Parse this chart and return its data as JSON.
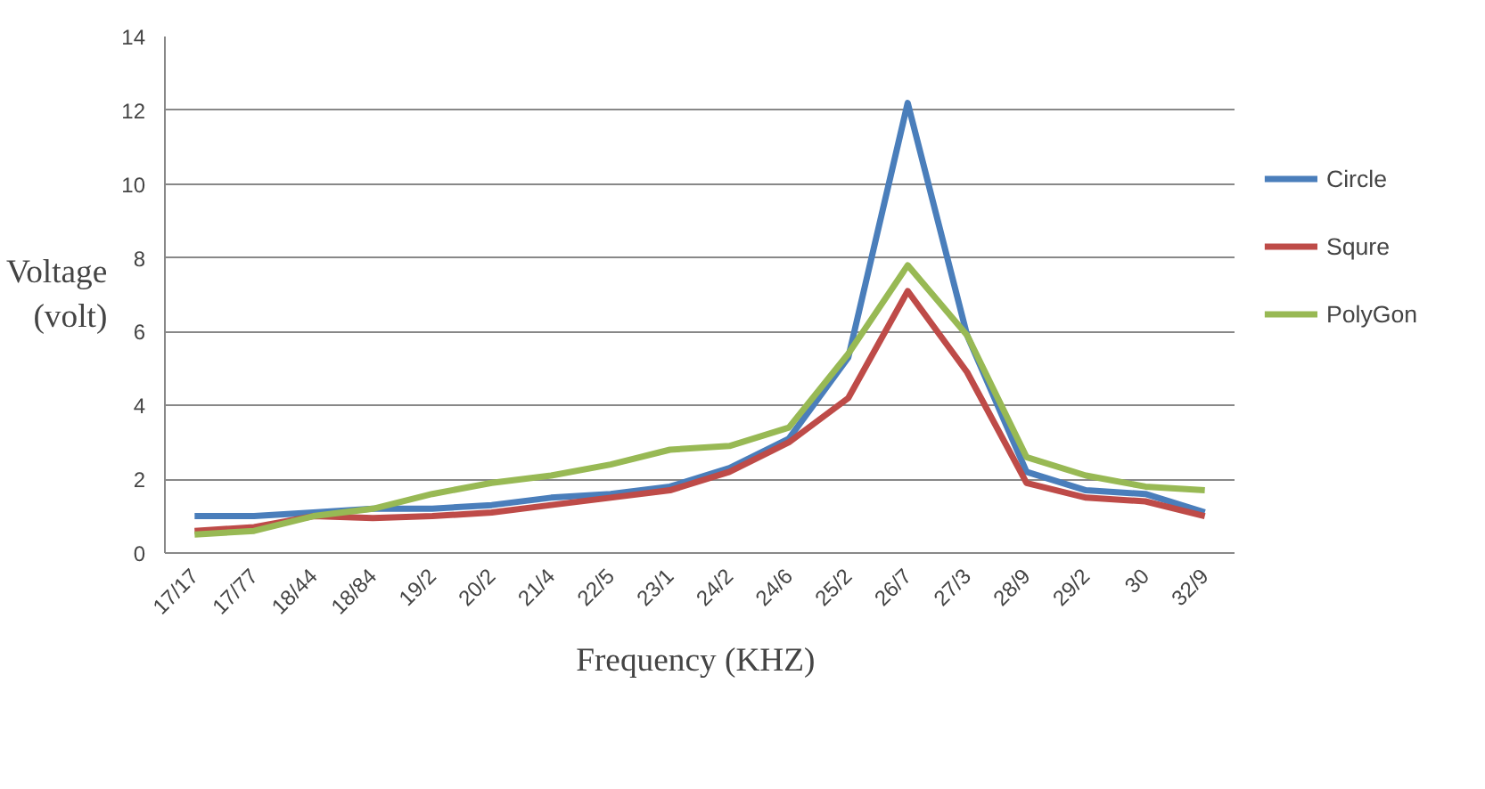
{
  "chart_data": {
    "type": "line",
    "xlabel": "Frequency  (KHZ)",
    "ylabel": "Voltage\n(volt)",
    "categories": [
      "17/17",
      "17/77",
      "18/44",
      "18/84",
      "19/2",
      "20/2",
      "21/4",
      "22/5",
      "23/1",
      "24/2",
      "24/6",
      "25/2",
      "26/7",
      "27/3",
      "28/9",
      "29/2",
      "30",
      "32/9"
    ],
    "series": [
      {
        "name": "Circle",
        "color": "#4a7ebb",
        "values": [
          1.0,
          1.0,
          1.1,
          1.2,
          1.2,
          1.3,
          1.5,
          1.6,
          1.8,
          2.3,
          3.1,
          5.3,
          12.2,
          5.9,
          2.2,
          1.7,
          1.6,
          1.1
        ]
      },
      {
        "name": "Squre",
        "color": "#be4b48",
        "values": [
          0.6,
          0.7,
          1.0,
          0.95,
          1.0,
          1.1,
          1.3,
          1.5,
          1.7,
          2.2,
          3.0,
          4.2,
          7.1,
          4.9,
          1.9,
          1.5,
          1.4,
          1.0
        ]
      },
      {
        "name": "PolyGon",
        "color": "#98b954",
        "values": [
          0.5,
          0.6,
          1.0,
          1.2,
          1.6,
          1.9,
          2.1,
          2.4,
          2.8,
          2.9,
          3.4,
          5.4,
          7.8,
          5.9,
          2.6,
          2.1,
          1.8,
          1.7
        ]
      }
    ],
    "ylim": [
      0,
      14
    ],
    "yticks": [
      0,
      2,
      4,
      6,
      8,
      10,
      12,
      14
    ],
    "grid": "y",
    "legend": "right",
    "marker": "none",
    "line_style": "solid"
  }
}
